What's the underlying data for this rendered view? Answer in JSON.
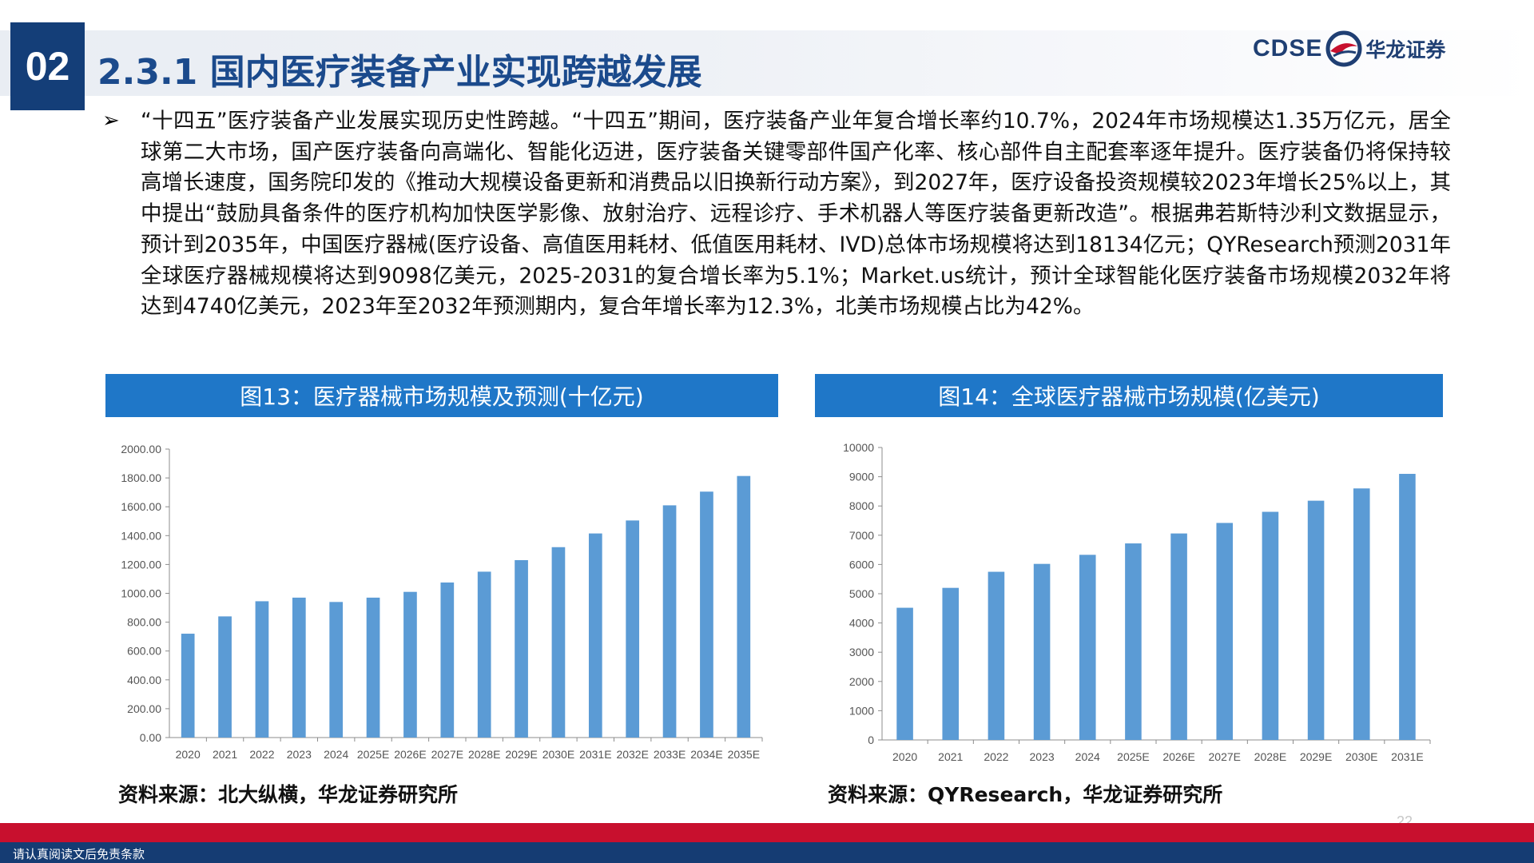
{
  "header": {
    "section_number": "02",
    "title": "2.3.1 国内医疗装备产业实现跨越发展",
    "logo_text_en": "CDSE",
    "logo_text_cn": "华龙证券"
  },
  "body": {
    "bullet_symbol": "➢",
    "paragraph": "“十四五”医疗装备产业发展实现历史性跨越。“十四五”期间，医疗装备产业年复合增长率约10.7%，2024年市场规模达1.35万亿元，居全球第二大市场，国产医疗装备向高端化、智能化迈进，医疗装备关键零部件国产化率、核心部件自主配套率逐年提升。医疗装备仍将保持较高增长速度，国务院印发的《推动大规模设备更新和消费品以旧换新行动方案》，到2027年，医疗设备投资规模较2023年增长25%以上，其中提出“鼓励具备条件的医疗机构加快医学影像、放射治疗、远程诊疗、手术机器人等医疗装备更新改造”。根据弗若斯特沙利文数据显示，预计到2035年，中国医疗器械(医疗设备、高值医用耗材、低值医用耗材、IVD)总体市场规模将达到18134亿元；QYResearch预测2031年全球医疗器械规模将达到9098亿美元，2025-2031的复合增长率为5.1%；Market.us统计，预计全球智能化医疗装备市场规模2032年将达到4740亿美元，2023年至2032年预测期内，复合年增长率为12.3%，北美市场规模占比为42%。"
  },
  "figures": {
    "fig13_caption": "图13：医疗器械市场规模及预测(十亿元)",
    "fig13_source": "资料来源：北大纵横，华龙证券研究所",
    "fig14_caption": "图14：全球医疗器械市场规模(亿美元)",
    "fig14_source": "资料来源：QYResearch，华龙证券研究所"
  },
  "chart_data": [
    {
      "type": "bar",
      "categories": [
        "2020",
        "2021",
        "2022",
        "2023",
        "2024",
        "2025E",
        "2026E",
        "2027E",
        "2028E",
        "2029E",
        "2030E",
        "2031E",
        "2032E",
        "2033E",
        "2034E",
        "2035E"
      ],
      "values": [
        720,
        840,
        945,
        970,
        940,
        970,
        1010,
        1075,
        1150,
        1230,
        1320,
        1415,
        1505,
        1610,
        1705,
        1813.4
      ],
      "ylim": [
        0,
        2000
      ],
      "yticks": [
        "0.00",
        "200.00",
        "400.00",
        "600.00",
        "800.00",
        "1000.00",
        "1200.00",
        "1400.00",
        "1600.00",
        "1800.00",
        "2000.00"
      ],
      "bar_color": "#5b9bd5",
      "grid": false,
      "legend": "none"
    },
    {
      "type": "bar",
      "categories": [
        "2020",
        "2021",
        "2022",
        "2023",
        "2024",
        "2025E",
        "2026E",
        "2027E",
        "2028E",
        "2029E",
        "2030E",
        "2031E"
      ],
      "values": [
        4520,
        5200,
        5750,
        6020,
        6330,
        6720,
        7060,
        7420,
        7800,
        8180,
        8600,
        9098
      ],
      "ylim": [
        0,
        10000
      ],
      "yticks": [
        "0",
        "1000",
        "2000",
        "3000",
        "4000",
        "5000",
        "6000",
        "7000",
        "8000",
        "9000",
        "10000"
      ],
      "bar_color": "#5b9bd5",
      "grid": false,
      "legend": "none"
    }
  ],
  "footer": {
    "page_number": "22",
    "disclaimer": "请认真阅读文后免责条款"
  },
  "colors": {
    "brand_navy": "#143e78",
    "title_blue": "#1b4a8c",
    "caption_blue": "#1f77c8",
    "footer_red": "#c8102e",
    "footer_blue": "#153c73"
  }
}
